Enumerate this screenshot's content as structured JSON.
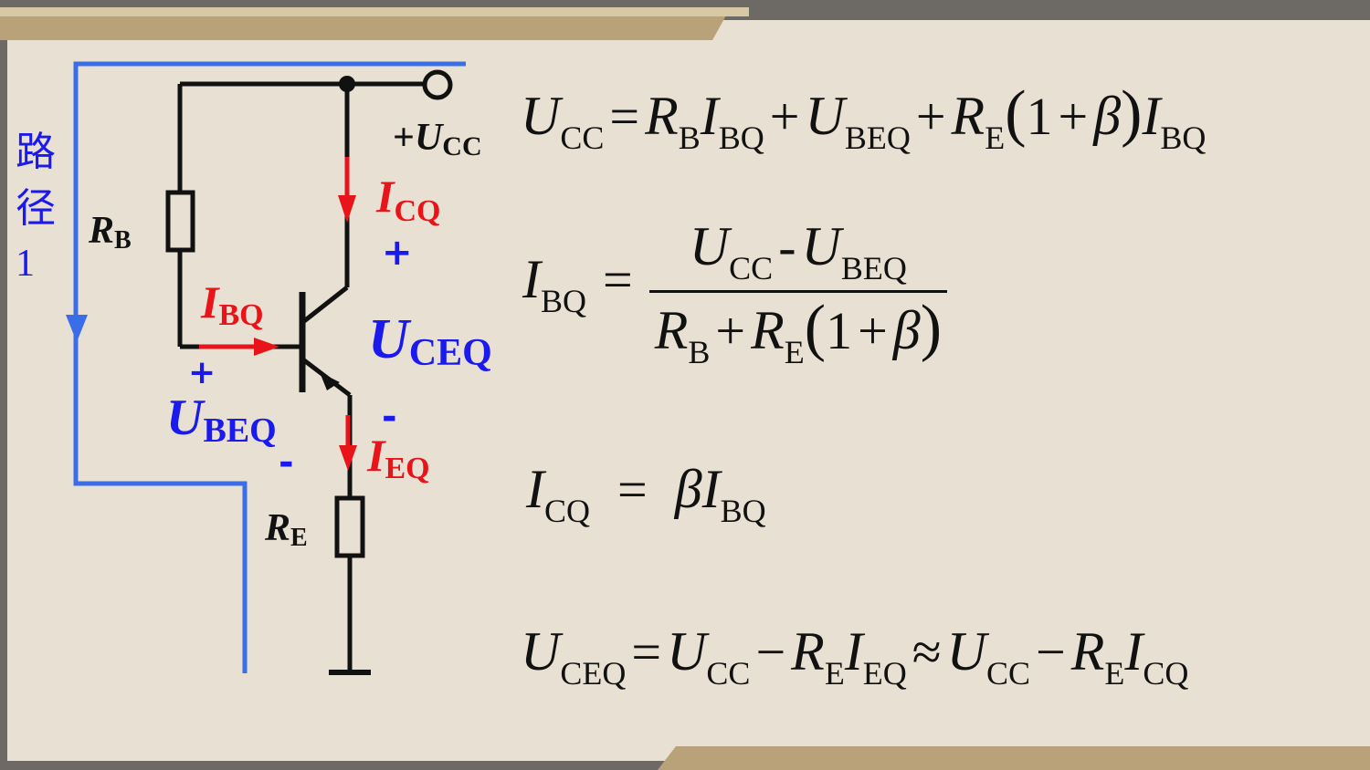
{
  "colors": {
    "background": "#e8e0d2",
    "wire": "#111111",
    "path_line": "#3a6ee8",
    "current_red": "#e8141a",
    "voltage_blue": "#1a1aee",
    "frame_gold": "#b9a27a",
    "outer": "#6d6a66"
  },
  "path_label": {
    "chars": [
      "路",
      "径",
      "1"
    ]
  },
  "circuit": {
    "rb": {
      "main": "R",
      "sub": "B"
    },
    "re": {
      "main": "R",
      "sub": "E"
    },
    "ucc": {
      "plus": "+",
      "main": "U",
      "sub": "CC"
    },
    "icq": {
      "main": "I",
      "sub": "CQ"
    },
    "ibq": {
      "main": "I",
      "sub": "BQ"
    },
    "ieq": {
      "main": "I",
      "sub": "EQ"
    },
    "uceq": {
      "main": "U",
      "sub": "CEQ",
      "plus": "+",
      "minus": "-"
    },
    "ubeq": {
      "main": "U",
      "sub": "BEQ",
      "plus": "+",
      "minus": "-"
    }
  },
  "equations": {
    "eq1": {
      "t1": "U",
      "t1s": "CC",
      "eq": "=",
      "t2": "R",
      "t2s": "B",
      "t3": "I",
      "t3s": "BQ",
      "plus1": "+",
      "t4": "U",
      "t4s": "BEQ",
      "plus2": "+",
      "t5": "R",
      "t5s": "E",
      "lp": "(",
      "one": "1",
      "plus3": "+",
      "beta": "β",
      "rp": ")",
      "t6": "I",
      "t6s": "BQ"
    },
    "eq2": {
      "lhs": "I",
      "lhss": "BQ",
      "eq": "=",
      "num_a": "U",
      "num_as": "CC",
      "num_minus": "-",
      "num_b": "U",
      "num_bs": "BEQ",
      "den_a": "R",
      "den_as": "B",
      "den_plus": "+",
      "den_b": "R",
      "den_bs": "E",
      "lp": "(",
      "one": "1",
      "plus": "+",
      "beta": "β",
      "rp": ")"
    },
    "eq3": {
      "lhs": "I",
      "lhss": "CQ",
      "eq": "=",
      "beta": "β",
      "r": "I",
      "rs": "BQ"
    },
    "eq4": {
      "t1": "U",
      "t1s": "CEQ",
      "eq": "=",
      "t2": "U",
      "t2s": "CC",
      "minus1": "−",
      "t3": "R",
      "t3s": "E",
      "t4": "I",
      "t4s": "EQ",
      "approx": "≈",
      "t5": "U",
      "t5s": "CC",
      "minus2": "−",
      "t6": "R",
      "t6s": "E",
      "t7": "I",
      "t7s": "CQ"
    }
  }
}
